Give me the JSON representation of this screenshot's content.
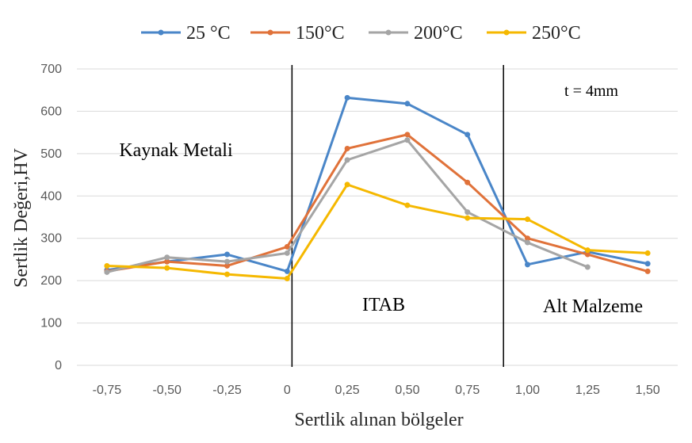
{
  "chart_data": {
    "type": "line",
    "categories": [
      "-0,75",
      "-0,50",
      "-0,25",
      "0",
      "0,25",
      "0,50",
      "0,75",
      "1,00",
      "1,25",
      "1,50"
    ],
    "x": [
      -0.75,
      -0.5,
      -0.25,
      0,
      0.25,
      0.5,
      0.75,
      1.0,
      1.25,
      1.5
    ],
    "series": [
      {
        "name": "25 °C",
        "color": "#4a86c8",
        "values": [
          225,
          245,
          262,
          222,
          632,
          618,
          545,
          238,
          268,
          240
        ]
      },
      {
        "name": "150°C",
        "color": "#e0723a",
        "values": [
          222,
          245,
          235,
          280,
          512,
          545,
          432,
          300,
          262,
          222
        ]
      },
      {
        "name": "200°C",
        "color": "#a5a5a5",
        "values": [
          220,
          255,
          245,
          265,
          485,
          532,
          362,
          290,
          232,
          null
        ]
      },
      {
        "name": "250°C",
        "color": "#f5b800",
        "values": [
          235,
          230,
          215,
          205,
          427,
          378,
          348,
          345,
          272,
          265
        ]
      }
    ],
    "ylim": [
      0,
      700
    ],
    "yticks": [
      "0",
      "100",
      "200",
      "300",
      "400",
      "500",
      "600",
      "700"
    ],
    "ytick_values": [
      0,
      100,
      200,
      300,
      400,
      500,
      600,
      700
    ],
    "xlabel": "Sertlik alınan bölgeler",
    "ylabel": "Sertlik Değeri,HV",
    "grid": true,
    "legend_position": "top",
    "region_boundaries": [
      0.02,
      0.9
    ],
    "regions": [
      "Kaynak Metali",
      "ITAB",
      "Alt Malzeme"
    ],
    "annotation": "t = 4mm"
  }
}
